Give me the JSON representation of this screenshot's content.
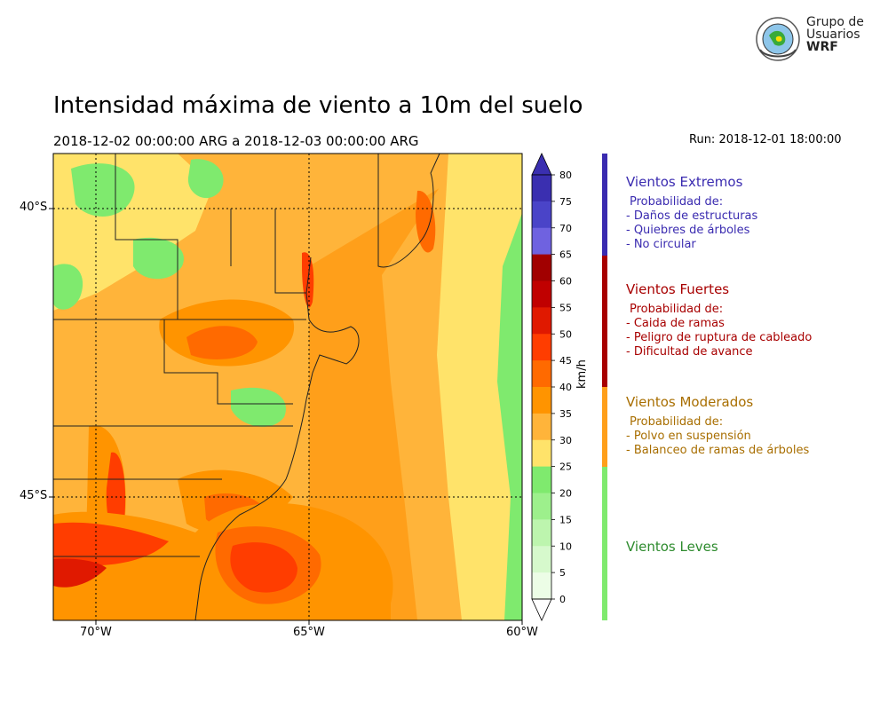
{
  "header": {
    "title": "Intensidad máxima de viento a 10m del suelo",
    "period": "2018-12-02 00:00:00 ARG  a  2018-12-03 00:00:00 ARG",
    "run": "Run: 2018-12-01 18:00:00"
  },
  "logo": {
    "line1": "Grupo de",
    "line2": "Usuarios",
    "line3": "WRF"
  },
  "map": {
    "lat_labels": [
      "40°S",
      "45°S"
    ],
    "lon_labels": [
      "70°W",
      "65°W",
      "60°W"
    ]
  },
  "colorbar": {
    "unit": "km/h",
    "ticks": [
      "80",
      "75",
      "70",
      "65",
      "60",
      "55",
      "50",
      "45",
      "40",
      "35",
      "30",
      "25",
      "20",
      "15",
      "10",
      "5",
      "0"
    ],
    "colors": [
      "#3a2fb0",
      "#4a44c8",
      "#6f62e0",
      "#a10000",
      "#c00000",
      "#e01900",
      "#ff3d00",
      "#ff6a00",
      "#ff9400",
      "#ffb43a",
      "#ffe36a",
      "#7fea6e",
      "#9df08c",
      "#bdf5ae",
      "#d6f9cc",
      "#ecfde6"
    ]
  },
  "legend": {
    "extremos": {
      "title": "Vientos Extremos",
      "lines": [
        "Probabilidad de:",
        "- Daños de estructuras",
        "- Quiebres de árboles",
        "- No circular"
      ],
      "color": "#3a2bb0"
    },
    "fuertes": {
      "title": "Vientos Fuertes",
      "lines": [
        "Probabilidad de:",
        "- Caida de ramas",
        "- Peligro de ruptura de cableado",
        "- Dificultad de avance"
      ],
      "color": "#a80000"
    },
    "moderados": {
      "title": "Vientos Moderados",
      "lines": [
        "Probabilidad de:",
        "- Polvo en suspensión",
        "- Balanceo de ramas de árboles"
      ],
      "color": "#a86e00"
    },
    "leves": {
      "title": "Vientos Leves",
      "color": "#2e8b2e"
    }
  }
}
